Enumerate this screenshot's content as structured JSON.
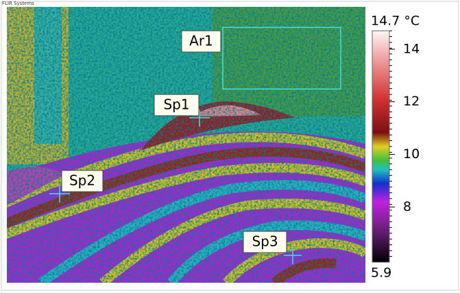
{
  "header": {
    "brand": "FLIR Systems"
  },
  "measurements": {
    "area": "Ar1",
    "spots": [
      "Sp1",
      "Sp2",
      "Sp3"
    ]
  },
  "scale": {
    "range": [
      5.9,
      14.7
    ],
    "ticks": [
      {
        "value": 14.7,
        "label": "14.7 °C"
      },
      14,
      12,
      10,
      8,
      5.9
    ]
  }
}
